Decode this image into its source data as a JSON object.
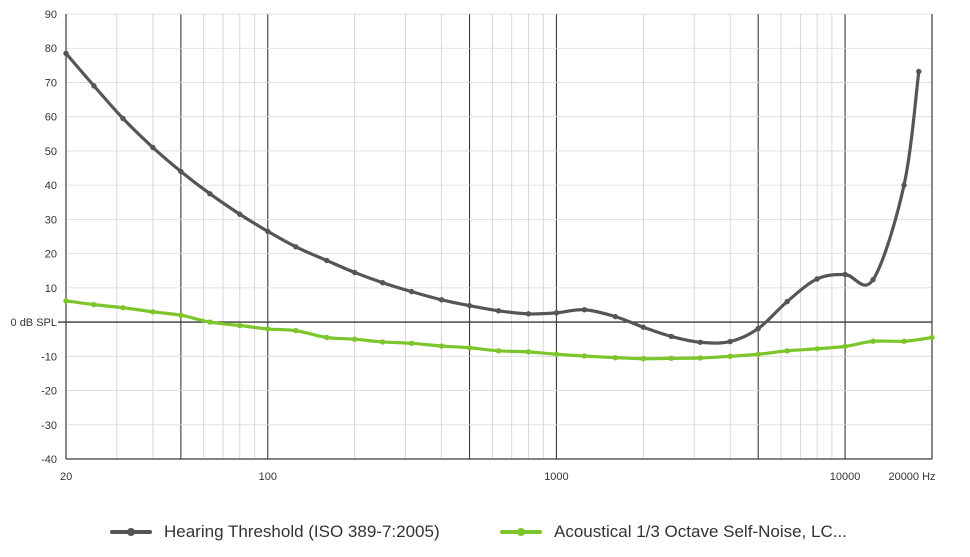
{
  "chart_data": {
    "type": "line",
    "title": "",
    "xlabel": "",
    "ylabel": "",
    "x_scale": "log",
    "xlim": [
      20,
      20000
    ],
    "ylim": [
      -40,
      90
    ],
    "grid": true,
    "legend_position": "bottom",
    "x_tick_labels": [
      {
        "value": 20,
        "label": "20"
      },
      {
        "value": 100,
        "label": "100"
      },
      {
        "value": 1000,
        "label": "1000"
      },
      {
        "value": 10000,
        "label": "10000"
      },
      {
        "value": 20000,
        "label": "20000 Hz"
      }
    ],
    "y_tick_labels": [
      {
        "value": 90,
        "label": "90"
      },
      {
        "value": 80,
        "label": "80"
      },
      {
        "value": 70,
        "label": "70"
      },
      {
        "value": 60,
        "label": "60"
      },
      {
        "value": 50,
        "label": "50"
      },
      {
        "value": 40,
        "label": "40"
      },
      {
        "value": 30,
        "label": "30"
      },
      {
        "value": 20,
        "label": "20"
      },
      {
        "value": 10,
        "label": "10"
      },
      {
        "value": 0,
        "label": "0 dB SPL"
      },
      {
        "value": -10,
        "label": "-10"
      },
      {
        "value": -20,
        "label": "-20"
      },
      {
        "value": -30,
        "label": "-30"
      },
      {
        "value": -40,
        "label": "-40"
      }
    ],
    "series": [
      {
        "name": "Hearing Threshold (ISO 389-7:2005)",
        "color": "#555555",
        "points": [
          [
            20,
            78.5
          ],
          [
            25,
            69
          ],
          [
            31.5,
            59.5
          ],
          [
            40,
            51
          ],
          [
            50,
            44
          ],
          [
            63,
            37.5
          ],
          [
            80,
            31.5
          ],
          [
            100,
            26.5
          ],
          [
            125,
            22
          ],
          [
            160,
            18
          ],
          [
            200,
            14.5
          ],
          [
            250,
            11.5
          ],
          [
            315,
            8.9
          ],
          [
            400,
            6.5
          ],
          [
            500,
            4.8
          ],
          [
            630,
            3.3
          ],
          [
            800,
            2.4
          ],
          [
            1000,
            2.7
          ],
          [
            1250,
            3.6
          ],
          [
            1600,
            1.6
          ],
          [
            2000,
            -1.5
          ],
          [
            2500,
            -4.2
          ],
          [
            3150,
            -5.9
          ],
          [
            4000,
            -5.7
          ],
          [
            5000,
            -1.9
          ],
          [
            6300,
            6.0
          ],
          [
            8000,
            12.6
          ],
          [
            10000,
            13.9
          ],
          [
            12500,
            12.4
          ],
          [
            16000,
            40
          ],
          [
            18000,
            73.2
          ]
        ]
      },
      {
        "name": "Acoustical 1/3 Octave Self-Noise, LC...",
        "color": "#7cc62b",
        "points": [
          [
            20,
            6.2
          ],
          [
            25,
            5.1
          ],
          [
            31.5,
            4.2
          ],
          [
            40,
            3.0
          ],
          [
            50,
            2.0
          ],
          [
            63,
            0.0
          ],
          [
            80,
            -1.0
          ],
          [
            100,
            -2.0
          ],
          [
            125,
            -2.5
          ],
          [
            160,
            -4.5
          ],
          [
            200,
            -5.0
          ],
          [
            250,
            -5.8
          ],
          [
            315,
            -6.2
          ],
          [
            400,
            -7.0
          ],
          [
            500,
            -7.5
          ],
          [
            630,
            -8.4
          ],
          [
            800,
            -8.7
          ],
          [
            1000,
            -9.4
          ],
          [
            1250,
            -9.9
          ],
          [
            1600,
            -10.4
          ],
          [
            2000,
            -10.7
          ],
          [
            2500,
            -10.6
          ],
          [
            3150,
            -10.5
          ],
          [
            4000,
            -10.0
          ],
          [
            5000,
            -9.4
          ],
          [
            6300,
            -8.4
          ],
          [
            8000,
            -7.8
          ],
          [
            10000,
            -7.1
          ],
          [
            12500,
            -5.6
          ],
          [
            16000,
            -5.6
          ],
          [
            20000,
            -4.5
          ]
        ]
      }
    ]
  }
}
